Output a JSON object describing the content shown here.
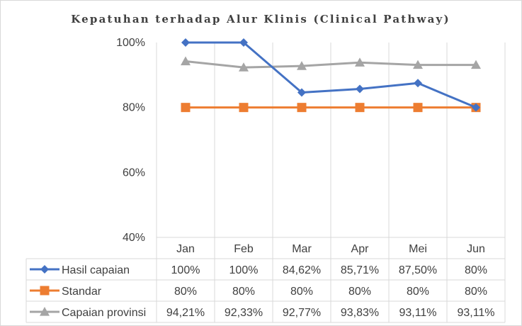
{
  "chart_data": {
    "type": "line",
    "title": "Kepatuhan terhadap Alur Klinis (Clinical Pathway)",
    "categories": [
      "Jan",
      "Feb",
      "Mar",
      "Apr",
      "Mei",
      "Jun"
    ],
    "ylim": [
      0.4,
      1.0
    ],
    "yticks": [
      0.4,
      0.6,
      0.8,
      1.0
    ],
    "ytick_labels": [
      "40%",
      "60%",
      "80%",
      "100%"
    ],
    "grid": "vertical",
    "legend": "data-table",
    "series": [
      {
        "name": "Hasil capaian",
        "color": "#4472C4",
        "marker": "diamond",
        "values": [
          1.0,
          1.0,
          0.8462,
          0.8571,
          0.875,
          0.8
        ],
        "labels": [
          "100%",
          "100%",
          "84,62%",
          "85,71%",
          "87,50%",
          "80%"
        ]
      },
      {
        "name": "Standar",
        "color": "#ED7D31",
        "marker": "square",
        "values": [
          0.8,
          0.8,
          0.8,
          0.8,
          0.8,
          0.8
        ],
        "labels": [
          "80%",
          "80%",
          "80%",
          "80%",
          "80%",
          "80%"
        ]
      },
      {
        "name": "Capaian provinsi",
        "color": "#A5A5A5",
        "marker": "triangle",
        "values": [
          0.9421,
          0.9233,
          0.9277,
          0.9383,
          0.9311,
          0.9311
        ],
        "labels": [
          "94,21%",
          "92,33%",
          "92,77%",
          "93,83%",
          "93,11%",
          "93,11%"
        ]
      }
    ]
  }
}
